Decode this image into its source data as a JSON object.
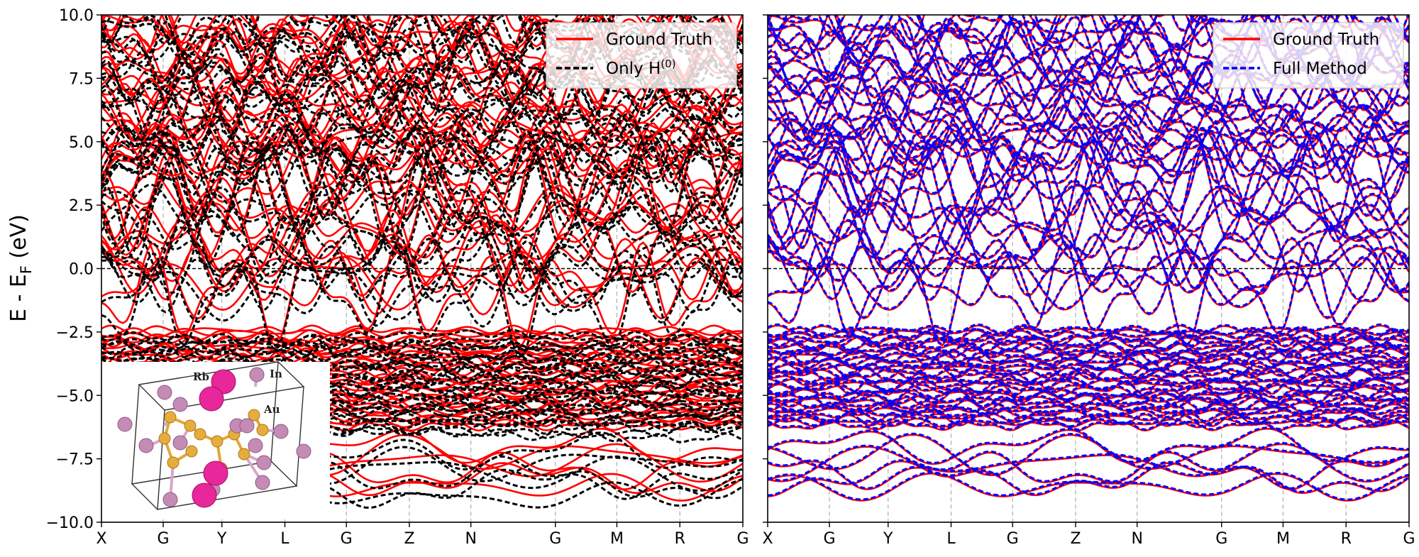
{
  "chart_data": [
    {
      "type": "line",
      "panel": "left",
      "ylabel": "E - E",
      "ylabel_sub": "F",
      "ylabel_unit": " (eV)",
      "ylim": [
        -10.0,
        10.0
      ],
      "yticks": [
        -10.0,
        -7.5,
        -5.0,
        -2.5,
        0.0,
        2.5,
        5.0,
        7.5,
        10.0
      ],
      "ytick_labels": [
        "−10.0",
        "−7.5",
        "−5.0",
        "−2.5",
        "0.0",
        "2.5",
        "5.0",
        "7.5",
        "10.0"
      ],
      "kpath_positions": [
        0,
        0.833,
        1.625,
        2.475,
        3.305,
        4.155,
        4.985,
        6.125,
        6.955,
        7.805,
        8.655
      ],
      "kpath_labels": [
        "X",
        "G",
        "Y",
        "L",
        "G",
        "Z",
        "N",
        "G",
        "M",
        "R",
        "G"
      ],
      "fermi_level": 0.0,
      "grid": "vertical at k-points",
      "legend_placement": "top-right",
      "series": [
        {
          "name": "Ground Truth",
          "color": "#ff0000",
          "style": "solid"
        },
        {
          "name": "Only H",
          "name_sup": "(0)",
          "color": "#000000",
          "style": "dashed"
        }
      ],
      "inset_labels": [
        "Rb",
        "In",
        "Au"
      ]
    },
    {
      "type": "line",
      "panel": "right",
      "ylim": [
        -10.0,
        10.0
      ],
      "kpath_positions": [
        0,
        0.833,
        1.625,
        2.475,
        3.305,
        4.155,
        4.985,
        6.125,
        6.955,
        7.805,
        8.655
      ],
      "kpath_labels": [
        "X",
        "G",
        "Y",
        "L",
        "G",
        "Z",
        "N",
        "G",
        "M",
        "R",
        "G"
      ],
      "fermi_level": 0.0,
      "grid": "vertical at k-points",
      "legend_placement": "top-right",
      "series": [
        {
          "name": "Ground Truth",
          "color": "#ff0000",
          "style": "solid"
        },
        {
          "name": "Full Method",
          "color": "#0000ff",
          "style": "dashed"
        }
      ]
    }
  ]
}
